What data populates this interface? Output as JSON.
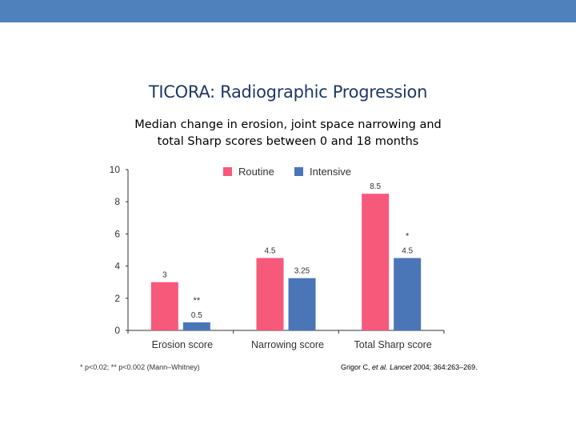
{
  "header": {
    "bar_color": "#4f81bd"
  },
  "slide": {
    "title": "TICORA: Radiographic Progression",
    "subtitle_line1": "Median change in erosion, joint space narrowing and",
    "subtitle_line2": "total Sharp scores between 0 and 18 months"
  },
  "chart_data": {
    "type": "bar",
    "categories": [
      "Erosion score",
      "Narrowing score",
      "Total Sharp score"
    ],
    "series": [
      {
        "name": "Routine",
        "values": [
          3,
          4.5,
          8.5
        ],
        "color": "#f7597b",
        "labels": [
          "3",
          "4.5",
          "8.5"
        ]
      },
      {
        "name": "Intensive",
        "values": [
          0.5,
          3.25,
          4.5
        ],
        "color": "#4a76b8",
        "labels": [
          "0.5",
          "3.25",
          "4.5"
        ]
      }
    ],
    "yticks": [
      0,
      2,
      4,
      6,
      8,
      10
    ],
    "ylim": [
      0,
      10
    ],
    "legend_placement": "top",
    "grid": false,
    "annotations": [
      {
        "category": "Erosion score",
        "series": "Intensive",
        "text": "**"
      },
      {
        "category": "Total Sharp score",
        "series": "Intensive",
        "text": "*"
      }
    ]
  },
  "footnote": "* p<0.02; ** p<0.002 (Mann–Whitney)",
  "citation": {
    "authors": "Grigor C,",
    "etal": "et al.",
    "journal": "Lancet",
    "details": "2004; 364:263–269."
  }
}
